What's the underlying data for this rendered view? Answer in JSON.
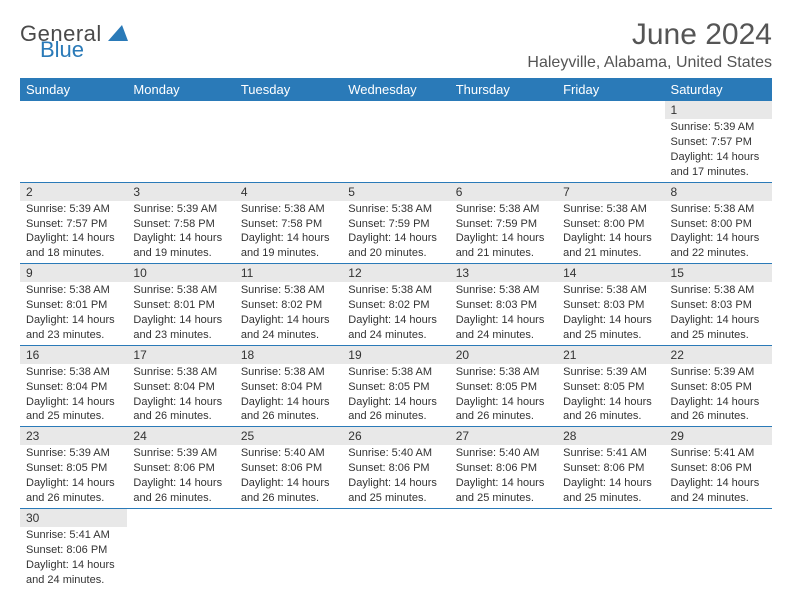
{
  "logo": {
    "general": "General",
    "blue": "Blue"
  },
  "title": "June 2024",
  "location": "Haleyville, Alabama, United States",
  "colors": {
    "header_bg": "#2a7ab8",
    "header_text": "#ffffff",
    "daynum_bg": "#e8e8e8",
    "border": "#2a7ab8",
    "text": "#333333",
    "page_bg": "#ffffff"
  },
  "weekdays": [
    "Sunday",
    "Monday",
    "Tuesday",
    "Wednesday",
    "Thursday",
    "Friday",
    "Saturday"
  ],
  "rows": [
    [
      {
        "day": "",
        "sunrise": "",
        "sunset": "",
        "daylight1": "",
        "daylight2": ""
      },
      {
        "day": "",
        "sunrise": "",
        "sunset": "",
        "daylight1": "",
        "daylight2": ""
      },
      {
        "day": "",
        "sunrise": "",
        "sunset": "",
        "daylight1": "",
        "daylight2": ""
      },
      {
        "day": "",
        "sunrise": "",
        "sunset": "",
        "daylight1": "",
        "daylight2": ""
      },
      {
        "day": "",
        "sunrise": "",
        "sunset": "",
        "daylight1": "",
        "daylight2": ""
      },
      {
        "day": "",
        "sunrise": "",
        "sunset": "",
        "daylight1": "",
        "daylight2": ""
      },
      {
        "day": "1",
        "sunrise": "Sunrise: 5:39 AM",
        "sunset": "Sunset: 7:57 PM",
        "daylight1": "Daylight: 14 hours",
        "daylight2": "and 17 minutes."
      }
    ],
    [
      {
        "day": "2",
        "sunrise": "Sunrise: 5:39 AM",
        "sunset": "Sunset: 7:57 PM",
        "daylight1": "Daylight: 14 hours",
        "daylight2": "and 18 minutes."
      },
      {
        "day": "3",
        "sunrise": "Sunrise: 5:39 AM",
        "sunset": "Sunset: 7:58 PM",
        "daylight1": "Daylight: 14 hours",
        "daylight2": "and 19 minutes."
      },
      {
        "day": "4",
        "sunrise": "Sunrise: 5:38 AM",
        "sunset": "Sunset: 7:58 PM",
        "daylight1": "Daylight: 14 hours",
        "daylight2": "and 19 minutes."
      },
      {
        "day": "5",
        "sunrise": "Sunrise: 5:38 AM",
        "sunset": "Sunset: 7:59 PM",
        "daylight1": "Daylight: 14 hours",
        "daylight2": "and 20 minutes."
      },
      {
        "day": "6",
        "sunrise": "Sunrise: 5:38 AM",
        "sunset": "Sunset: 7:59 PM",
        "daylight1": "Daylight: 14 hours",
        "daylight2": "and 21 minutes."
      },
      {
        "day": "7",
        "sunrise": "Sunrise: 5:38 AM",
        "sunset": "Sunset: 8:00 PM",
        "daylight1": "Daylight: 14 hours",
        "daylight2": "and 21 minutes."
      },
      {
        "day": "8",
        "sunrise": "Sunrise: 5:38 AM",
        "sunset": "Sunset: 8:00 PM",
        "daylight1": "Daylight: 14 hours",
        "daylight2": "and 22 minutes."
      }
    ],
    [
      {
        "day": "9",
        "sunrise": "Sunrise: 5:38 AM",
        "sunset": "Sunset: 8:01 PM",
        "daylight1": "Daylight: 14 hours",
        "daylight2": "and 23 minutes."
      },
      {
        "day": "10",
        "sunrise": "Sunrise: 5:38 AM",
        "sunset": "Sunset: 8:01 PM",
        "daylight1": "Daylight: 14 hours",
        "daylight2": "and 23 minutes."
      },
      {
        "day": "11",
        "sunrise": "Sunrise: 5:38 AM",
        "sunset": "Sunset: 8:02 PM",
        "daylight1": "Daylight: 14 hours",
        "daylight2": "and 24 minutes."
      },
      {
        "day": "12",
        "sunrise": "Sunrise: 5:38 AM",
        "sunset": "Sunset: 8:02 PM",
        "daylight1": "Daylight: 14 hours",
        "daylight2": "and 24 minutes."
      },
      {
        "day": "13",
        "sunrise": "Sunrise: 5:38 AM",
        "sunset": "Sunset: 8:03 PM",
        "daylight1": "Daylight: 14 hours",
        "daylight2": "and 24 minutes."
      },
      {
        "day": "14",
        "sunrise": "Sunrise: 5:38 AM",
        "sunset": "Sunset: 8:03 PM",
        "daylight1": "Daylight: 14 hours",
        "daylight2": "and 25 minutes."
      },
      {
        "day": "15",
        "sunrise": "Sunrise: 5:38 AM",
        "sunset": "Sunset: 8:03 PM",
        "daylight1": "Daylight: 14 hours",
        "daylight2": "and 25 minutes."
      }
    ],
    [
      {
        "day": "16",
        "sunrise": "Sunrise: 5:38 AM",
        "sunset": "Sunset: 8:04 PM",
        "daylight1": "Daylight: 14 hours",
        "daylight2": "and 25 minutes."
      },
      {
        "day": "17",
        "sunrise": "Sunrise: 5:38 AM",
        "sunset": "Sunset: 8:04 PM",
        "daylight1": "Daylight: 14 hours",
        "daylight2": "and 26 minutes."
      },
      {
        "day": "18",
        "sunrise": "Sunrise: 5:38 AM",
        "sunset": "Sunset: 8:04 PM",
        "daylight1": "Daylight: 14 hours",
        "daylight2": "and 26 minutes."
      },
      {
        "day": "19",
        "sunrise": "Sunrise: 5:38 AM",
        "sunset": "Sunset: 8:05 PM",
        "daylight1": "Daylight: 14 hours",
        "daylight2": "and 26 minutes."
      },
      {
        "day": "20",
        "sunrise": "Sunrise: 5:38 AM",
        "sunset": "Sunset: 8:05 PM",
        "daylight1": "Daylight: 14 hours",
        "daylight2": "and 26 minutes."
      },
      {
        "day": "21",
        "sunrise": "Sunrise: 5:39 AM",
        "sunset": "Sunset: 8:05 PM",
        "daylight1": "Daylight: 14 hours",
        "daylight2": "and 26 minutes."
      },
      {
        "day": "22",
        "sunrise": "Sunrise: 5:39 AM",
        "sunset": "Sunset: 8:05 PM",
        "daylight1": "Daylight: 14 hours",
        "daylight2": "and 26 minutes."
      }
    ],
    [
      {
        "day": "23",
        "sunrise": "Sunrise: 5:39 AM",
        "sunset": "Sunset: 8:05 PM",
        "daylight1": "Daylight: 14 hours",
        "daylight2": "and 26 minutes."
      },
      {
        "day": "24",
        "sunrise": "Sunrise: 5:39 AM",
        "sunset": "Sunset: 8:06 PM",
        "daylight1": "Daylight: 14 hours",
        "daylight2": "and 26 minutes."
      },
      {
        "day": "25",
        "sunrise": "Sunrise: 5:40 AM",
        "sunset": "Sunset: 8:06 PM",
        "daylight1": "Daylight: 14 hours",
        "daylight2": "and 26 minutes."
      },
      {
        "day": "26",
        "sunrise": "Sunrise: 5:40 AM",
        "sunset": "Sunset: 8:06 PM",
        "daylight1": "Daylight: 14 hours",
        "daylight2": "and 25 minutes."
      },
      {
        "day": "27",
        "sunrise": "Sunrise: 5:40 AM",
        "sunset": "Sunset: 8:06 PM",
        "daylight1": "Daylight: 14 hours",
        "daylight2": "and 25 minutes."
      },
      {
        "day": "28",
        "sunrise": "Sunrise: 5:41 AM",
        "sunset": "Sunset: 8:06 PM",
        "daylight1": "Daylight: 14 hours",
        "daylight2": "and 25 minutes."
      },
      {
        "day": "29",
        "sunrise": "Sunrise: 5:41 AM",
        "sunset": "Sunset: 8:06 PM",
        "daylight1": "Daylight: 14 hours",
        "daylight2": "and 24 minutes."
      }
    ],
    [
      {
        "day": "30",
        "sunrise": "Sunrise: 5:41 AM",
        "sunset": "Sunset: 8:06 PM",
        "daylight1": "Daylight: 14 hours",
        "daylight2": "and 24 minutes."
      },
      {
        "day": "",
        "sunrise": "",
        "sunset": "",
        "daylight1": "",
        "daylight2": ""
      },
      {
        "day": "",
        "sunrise": "",
        "sunset": "",
        "daylight1": "",
        "daylight2": ""
      },
      {
        "day": "",
        "sunrise": "",
        "sunset": "",
        "daylight1": "",
        "daylight2": ""
      },
      {
        "day": "",
        "sunrise": "",
        "sunset": "",
        "daylight1": "",
        "daylight2": ""
      },
      {
        "day": "",
        "sunrise": "",
        "sunset": "",
        "daylight1": "",
        "daylight2": ""
      },
      {
        "day": "",
        "sunrise": "",
        "sunset": "",
        "daylight1": "",
        "daylight2": ""
      }
    ]
  ]
}
